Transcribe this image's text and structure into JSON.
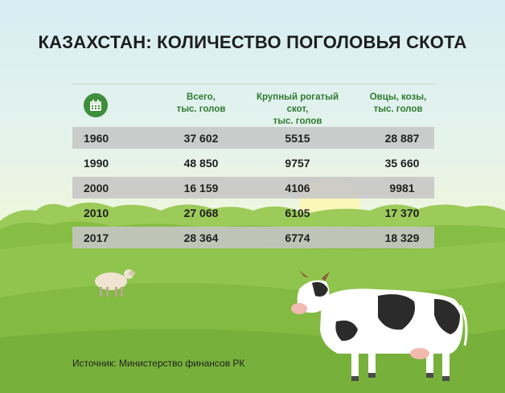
{
  "title": "КАЗАХСТАН: КОЛИЧЕСТВО ПОГОЛОВЬЯ СКОТА",
  "header": {
    "calendar_icon": "calendar-icon",
    "col_total": [
      "Всего,",
      "тыс. голов"
    ],
    "col_cattle": [
      "Крупный рогатый скот,",
      "тыс. голов"
    ],
    "col_sheep": [
      "Овцы, козы,",
      "тыс. голов"
    ]
  },
  "rows": [
    {
      "year": "1960",
      "total": "37 602",
      "cattle": "5515",
      "sheep": "28 887"
    },
    {
      "year": "1990",
      "total": "48 850",
      "cattle": "9757",
      "sheep": "35 660"
    },
    {
      "year": "2000",
      "total": "16 159",
      "cattle": "4106",
      "sheep": "9981"
    },
    {
      "year": "2010",
      "total": "27 068",
      "cattle": "6105",
      "sheep": "17 370"
    },
    {
      "year": "2017",
      "total": "28 364",
      "cattle": "6774",
      "sheep": "18 329"
    }
  ],
  "source": "Источник: Министерство финансов РК",
  "colors": {
    "accent_green": "#2f7a2f",
    "icon_green": "#3e8e3b",
    "row_grey": "#c6c6c6"
  }
}
